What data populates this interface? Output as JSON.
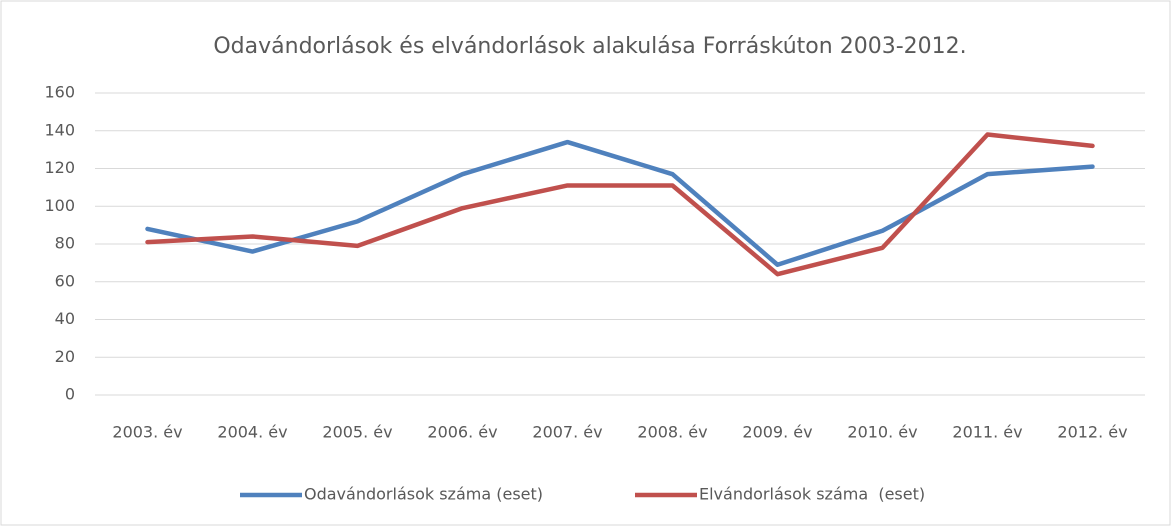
{
  "chart_data": {
    "type": "line",
    "title": "Odavándorlások és elvándorlások alakulása Forráskúton 2003-2012.",
    "categories": [
      "2003. év",
      "2004. év",
      "2005. év",
      "2006. év",
      "2007. év",
      "2008. év",
      "2009. év",
      "2010. év",
      "2011. év",
      "2012. év"
    ],
    "series": [
      {
        "name": "Odavándorlások száma (eset)",
        "color": "#4f81bd",
        "values": [
          88,
          76,
          92,
          117,
          134,
          117,
          69,
          87,
          117,
          121
        ]
      },
      {
        "name": "Elvándorlások száma  (eset)",
        "color": "#c0504d",
        "values": [
          81,
          84,
          79,
          99,
          111,
          111,
          64,
          78,
          138,
          132
        ]
      }
    ],
    "ylim": [
      0,
      160
    ],
    "yticks": [
      0,
      20,
      40,
      60,
      80,
      100,
      120,
      140,
      160
    ],
    "grid": true,
    "legend": "bottom"
  }
}
